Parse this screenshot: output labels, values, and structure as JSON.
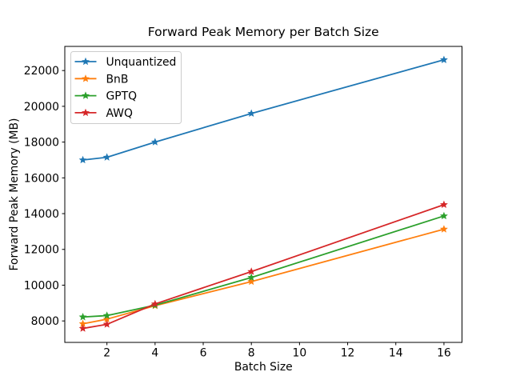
{
  "chart_data": {
    "type": "line",
    "title": "Forward Peak Memory per Batch Size",
    "xlabel": "Batch Size",
    "ylabel": "Forward Peak Memory (MB)",
    "x": [
      1,
      2,
      4,
      8,
      16
    ],
    "series": [
      {
        "name": "Unquantized",
        "color": "#1f77b4",
        "values": [
          17000,
          17150,
          18000,
          19600,
          22600
        ]
      },
      {
        "name": "BnB",
        "color": "#ff7f0e",
        "values": [
          7840,
          8100,
          8850,
          10200,
          13130
        ]
      },
      {
        "name": "GPTQ",
        "color": "#2ca02c",
        "values": [
          8220,
          8300,
          8880,
          10430,
          13870
        ]
      },
      {
        "name": "AWQ",
        "color": "#d62728",
        "values": [
          7580,
          7810,
          8950,
          10760,
          14500
        ]
      }
    ],
    "xticks": [
      2,
      4,
      6,
      8,
      10,
      12,
      14,
      16
    ],
    "yticks": [
      8000,
      10000,
      12000,
      14000,
      16000,
      18000,
      20000,
      22000
    ],
    "xlim": [
      0.25,
      16.75
    ],
    "ylim": [
      6800,
      23350
    ],
    "marker": "star",
    "grid": false,
    "legend_position": "upper-left",
    "frame_color": "#000000",
    "legend_border_color": "#cccccc"
  }
}
